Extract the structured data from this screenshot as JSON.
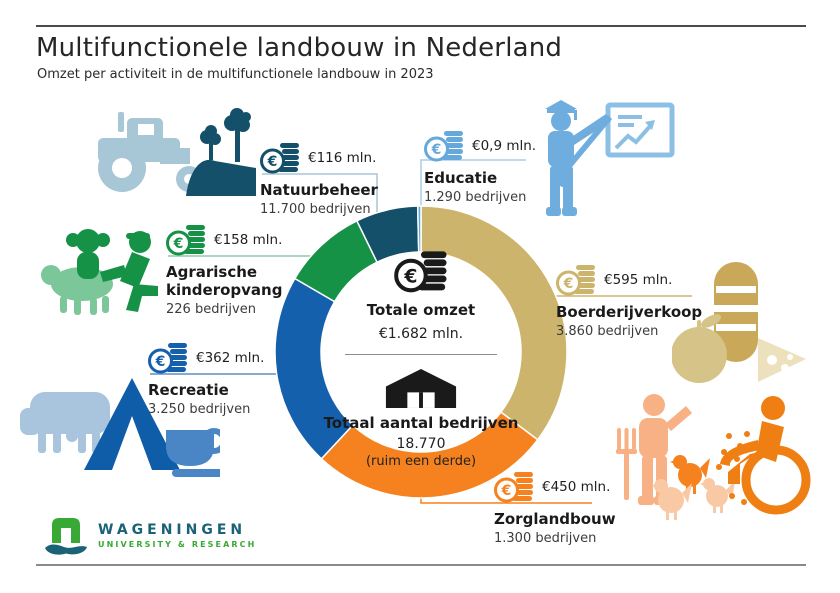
{
  "header": {
    "title": "Multifunctionele landbouw in Nederland",
    "subtitle": "Omzet per activiteit in de multifunctionele landbouw in 2023"
  },
  "center": {
    "revenue_label": "Totale omzet",
    "revenue_value": "€1.682 mln.",
    "companies_label": "Totaal aantal bedrijven",
    "companies_value": "18.770",
    "companies_note": "(ruim een derde)"
  },
  "chart_data": {
    "type": "pie",
    "variant": "donut",
    "title": "Omzet per activiteit in de multifunctionele landbouw in 2023",
    "unit": "mln euro",
    "total_revenue_mln": 1682,
    "total_companies": 18770,
    "start_angle_deg": 0,
    "direction": "clockwise",
    "segments": [
      {
        "key": "boerderijverkoop",
        "label": "Boerderijverkoop",
        "value_mln": 595,
        "value_label": "€595 mln.",
        "companies": 3860,
        "companies_label": "3.860 bedrijven",
        "color": "#cdb46c",
        "leader_color": "#cdb46c"
      },
      {
        "key": "zorglandbouw",
        "label": "Zorglandbouw",
        "value_mln": 450,
        "value_label": "€450 mln.",
        "companies": 1300,
        "companies_label": "1.300 bedrijven",
        "color": "#f5821f",
        "leader_color": "#f5821f"
      },
      {
        "key": "recreatie",
        "label": "Recreatie",
        "value_mln": 362,
        "value_label": "€362 mln.",
        "companies": 3250,
        "companies_label": "3.250 bedrijven",
        "color": "#1560ac",
        "leader_color": "#5d8fc3"
      },
      {
        "key": "kinderopvang",
        "label": "Agrarische kinderopvang",
        "value_mln": 158,
        "value_label": "€158 mln.",
        "companies": 226,
        "companies_label": "226 bedrijven",
        "color": "#169247",
        "leader_color": "#90c9a8"
      },
      {
        "key": "natuurbeheer",
        "label": "Natuurbeheer",
        "value_mln": 116,
        "value_label": "€116 mln.",
        "companies": 11700,
        "companies_label": "11.700 bedrijven",
        "color": "#14506a",
        "leader_color": "#a9c6d8"
      },
      {
        "key": "educatie",
        "label": "Educatie",
        "value_mln": 0.9,
        "value_label": "€0,9 mln.",
        "companies": 1290,
        "companies_label": "1.290 bedrijven",
        "color": "#64a8dc",
        "leader_color": "#a9cfe9"
      }
    ]
  },
  "logo": {
    "line1": "WAGENINGEN",
    "line2": "UNIVERSITY & RESEARCH"
  }
}
